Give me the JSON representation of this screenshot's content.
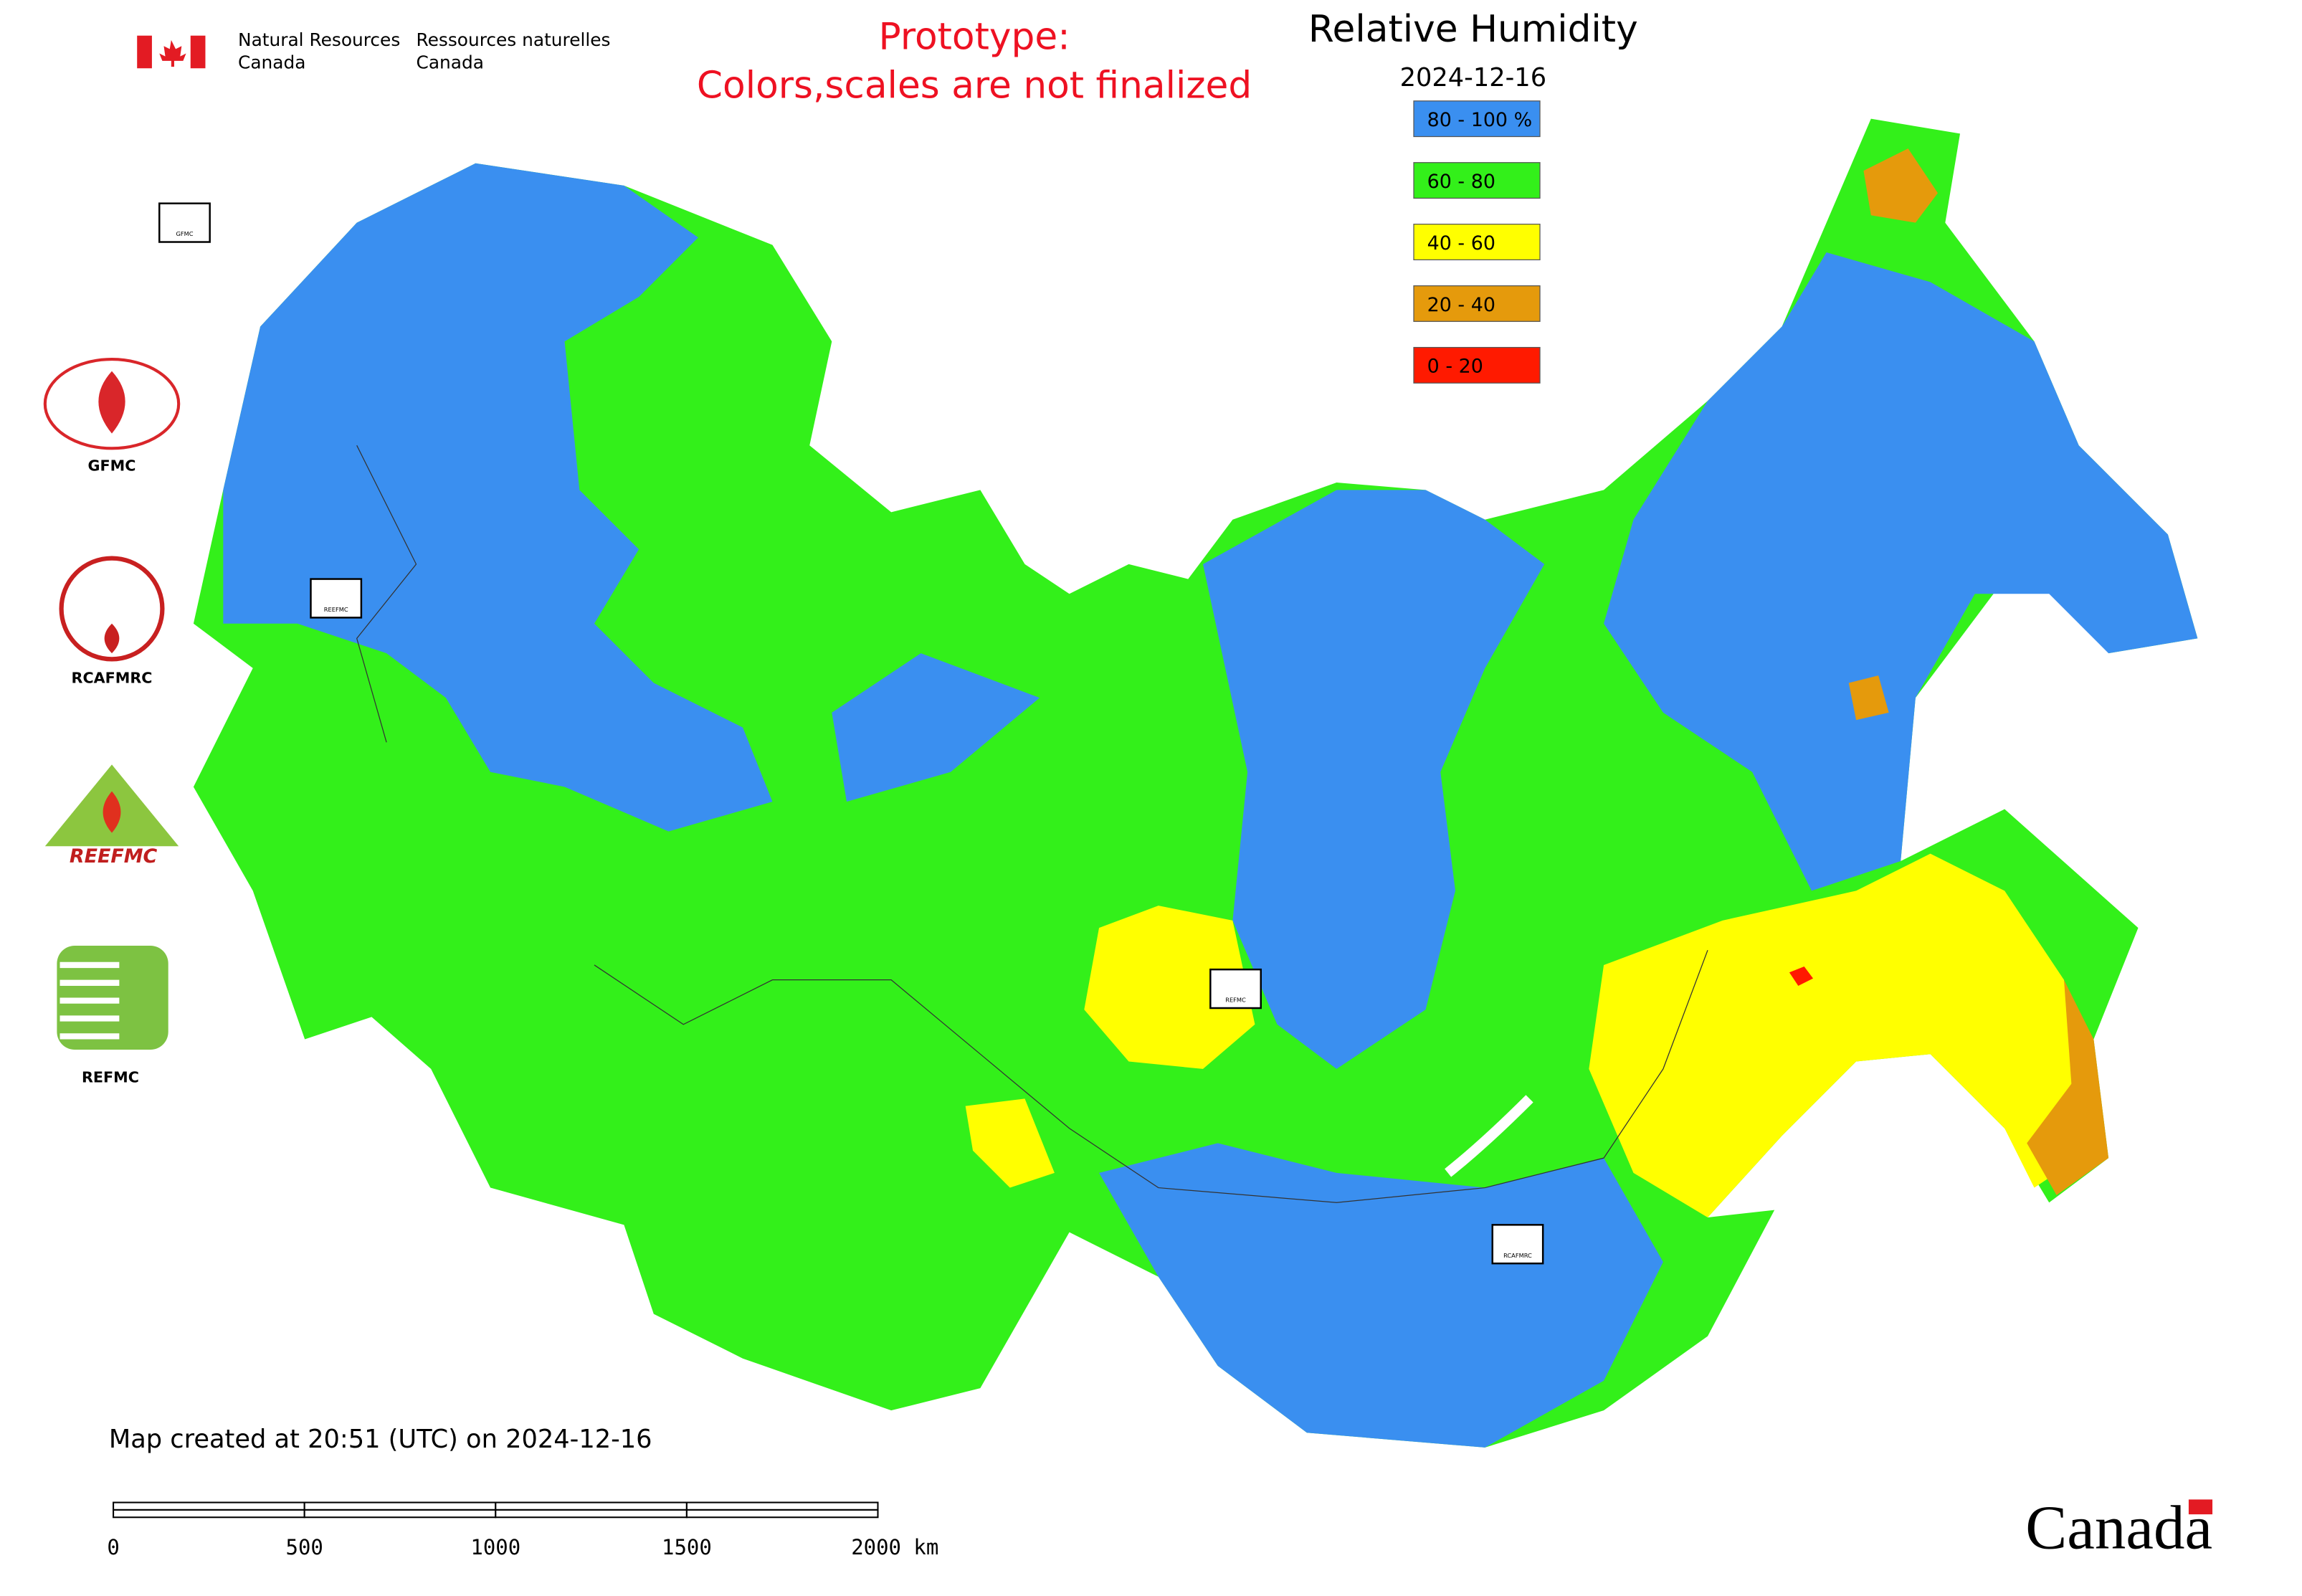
{
  "header": {
    "agency_en": [
      "Natural Resources",
      "Canada"
    ],
    "agency_fr": [
      "Ressources naturelles",
      "Canada"
    ],
    "prototype": [
      "Prototype:",
      "Colors,scales are not finalized"
    ]
  },
  "map": {
    "title": "Relative Humidity",
    "date": "2024-12-16",
    "legend": [
      {
        "label": "80 - 100 %",
        "color": "#3a8ff0"
      },
      {
        "label": "60 - 80",
        "color": "#33f01a"
      },
      {
        "label": "40 - 60",
        "color": "#ffff00"
      },
      {
        "label": "20 - 40",
        "color": "#e59a0c"
      },
      {
        "label": "0 - 20",
        "color": "#ff1a00"
      }
    ],
    "markers": [
      "GFMC",
      "REEFMC",
      "REFMC",
      "RCAFMRC"
    ],
    "footer": "Map created at 20:51 (UTC) on 2024-12-16",
    "scale_bar": [
      "0",
      "500",
      "1000",
      "1500",
      "2000 km"
    ]
  },
  "logos": [
    "GFMC",
    "RCAFMRC",
    "REEFMC",
    "REFMC"
  ],
  "wordmark": "Canada"
}
